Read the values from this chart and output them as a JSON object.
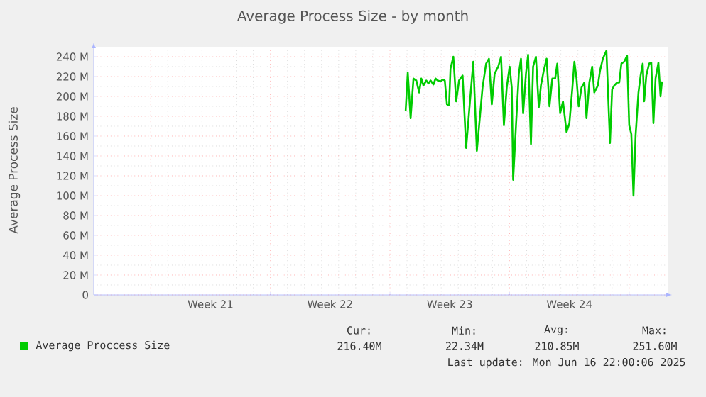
{
  "chart_data": {
    "type": "line",
    "title": "Average Process Size - by month",
    "ylabel": "Average Process Size",
    "xlim": [
      "2025-05-14T16:00",
      "2025-06-17T06:00"
    ],
    "ylim": [
      0,
      250
    ],
    "xticks": [
      {
        "value": "2025-05-18",
        "label": null
      },
      {
        "value": "2025-05-21T12:00",
        "label": "Week 21"
      },
      {
        "value": "2025-05-25",
        "label": null
      },
      {
        "value": "2025-05-28T12:00",
        "label": "Week 22"
      },
      {
        "value": "2025-06-01",
        "label": null
      },
      {
        "value": "2025-06-04T12:00",
        "label": "Week 23"
      },
      {
        "value": "2025-06-08",
        "label": null
      },
      {
        "value": "2025-06-11T12:00",
        "label": "Week 24"
      },
      {
        "value": "2025-06-15",
        "label": null
      }
    ],
    "yticks": [
      0,
      {
        "value": 20,
        "label": "20 M"
      },
      {
        "value": 40,
        "label": "40 M"
      },
      {
        "value": 60,
        "label": "60 M"
      },
      {
        "value": 80,
        "label": "80 M"
      },
      {
        "value": 100,
        "label": "100 M"
      },
      {
        "value": 120,
        "label": "120 M"
      },
      {
        "value": 140,
        "label": "140 M"
      },
      {
        "value": 160,
        "label": "160 M"
      },
      {
        "value": 180,
        "label": "180 M"
      },
      {
        "value": 200,
        "label": "200 M"
      },
      {
        "value": 220,
        "label": "220 M"
      },
      {
        "value": 240,
        "label": "240 M"
      }
    ],
    "grid": true,
    "legend": "bottom",
    "series": [
      {
        "name": "Average Proccess Size",
        "color": "#00cc00",
        "x": [
          "2025-06-01T22:00",
          "2025-06-02T01:00",
          "2025-06-02T05:00",
          "2025-06-02T09:00",
          "2025-06-02T13:00",
          "2025-06-02T17:00",
          "2025-06-02T20:00",
          "2025-06-02T23:00",
          "2025-06-03T03:00",
          "2025-06-03T06:00",
          "2025-06-03T09:00",
          "2025-06-03T13:00",
          "2025-06-03T16:00",
          "2025-06-03T19:00",
          "2025-06-03T23:00",
          "2025-06-04T02:00",
          "2025-06-04T05:00",
          "2025-06-04T08:00",
          "2025-06-04T11:00",
          "2025-06-04T13:00",
          "2025-06-04T17:00",
          "2025-06-04T21:00",
          "2025-06-05T01:00",
          "2025-06-05T06:00",
          "2025-06-05T11:00",
          "2025-06-05T16:00",
          "2025-06-05T21:00",
          "2025-06-06T02:00",
          "2025-06-06T07:00",
          "2025-06-06T10:00",
          "2025-06-06T15:00",
          "2025-06-06T19:00",
          "2025-06-06T23:00",
          "2025-06-07T03:00",
          "2025-06-07T08:00",
          "2025-06-07T12:00",
          "2025-06-07T16:00",
          "2025-06-07T20:00",
          "2025-06-08T00:00",
          "2025-06-08T03:00",
          "2025-06-08T05:00",
          "2025-06-08T09:00",
          "2025-06-08T13:00",
          "2025-06-08T16:00",
          "2025-06-08T19:00",
          "2025-06-08T23:00",
          "2025-06-09T02:00",
          "2025-06-09T06:00",
          "2025-06-09T09:00",
          "2025-06-09T13:00",
          "2025-06-09T17:00",
          "2025-06-09T20:00",
          "2025-06-10T00:00",
          "2025-06-10T04:00",
          "2025-06-10T08:00",
          "2025-06-10T12:00",
          "2025-06-10T16:00",
          "2025-06-10T19:00",
          "2025-06-10T23:00",
          "2025-06-11T03:00",
          "2025-06-11T08:00",
          "2025-06-11T12:00",
          "2025-06-11T16:00",
          "2025-06-11T19:00",
          "2025-06-11T22:00",
          "2025-06-12T01:00",
          "2025-06-12T05:00",
          "2025-06-12T09:00",
          "2025-06-12T12:00",
          "2025-06-12T16:00",
          "2025-06-12T20:00",
          "2025-06-12T23:00",
          "2025-06-13T04:00",
          "2025-06-13T07:00",
          "2025-06-13T11:00",
          "2025-06-13T16:00",
          "2025-06-13T21:00",
          "2025-06-14T00:00",
          "2025-06-14T03:00",
          "2025-06-14T07:00",
          "2025-06-14T10:00",
          "2025-06-14T13:00",
          "2025-06-14T17:00",
          "2025-06-14T21:00",
          "2025-06-15T00:00",
          "2025-06-15T03:00",
          "2025-06-15T06:00",
          "2025-06-15T09:00",
          "2025-06-15T13:00",
          "2025-06-15T16:00",
          "2025-06-15T19:00",
          "2025-06-15T21:00",
          "2025-06-16T00:00",
          "2025-06-16T04:00",
          "2025-06-16T07:00",
          "2025-06-16T10:00",
          "2025-06-16T13:00",
          "2025-06-16T17:00",
          "2025-06-16T20:00",
          "2025-06-16T22:00"
        ],
        "values": [
          185,
          224,
          178,
          218,
          216,
          204,
          218,
          211,
          216,
          213,
          216,
          212,
          218,
          216,
          215,
          217,
          216,
          192,
          191,
          228,
          240,
          195,
          216,
          221,
          148,
          192,
          235,
          145,
          185,
          209,
          233,
          238,
          192,
          223,
          230,
          240,
          171,
          209,
          230,
          209,
          116,
          171,
          223,
          238,
          183,
          223,
          242,
          152,
          230,
          240,
          189,
          211,
          226,
          238,
          190,
          218,
          218,
          233,
          183,
          195,
          164,
          173,
          207,
          235,
          218,
          190,
          209,
          214,
          178,
          214,
          230,
          204,
          211,
          226,
          238,
          246,
          153,
          207,
          211,
          214,
          214,
          233,
          235,
          241,
          171,
          162,
          100,
          161,
          204,
          221,
          233,
          195,
          221,
          233,
          234,
          173,
          218,
          234,
          200,
          215
        ]
      }
    ],
    "annotations": [
      "Cur:",
      "216.40M",
      "Min:",
      "22.34M",
      "Avg:",
      "210.85M",
      "Max:",
      "251.60M",
      "Last update: Mon Jun 16 22:00:06 2025"
    ]
  }
}
